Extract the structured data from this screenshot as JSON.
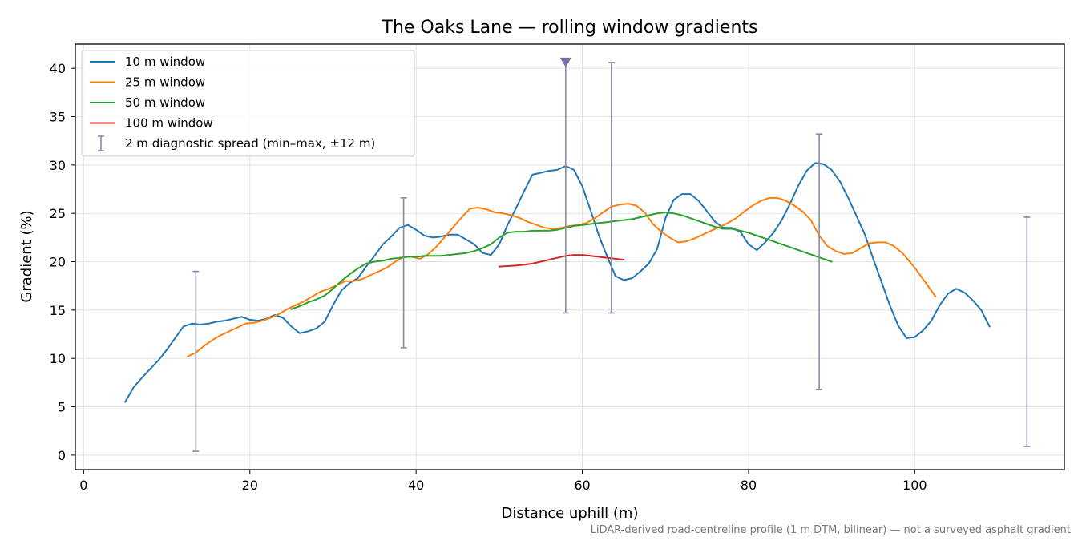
{
  "chart_data": {
    "type": "line",
    "title": "The Oaks Lane — rolling window gradients",
    "xlabel": "Distance uphill (m)",
    "ylabel": "Gradient (%)",
    "xlim": [
      -1,
      118
    ],
    "ylim": [
      -1.5,
      42.5
    ],
    "xticks": [
      0,
      20,
      40,
      60,
      80,
      100
    ],
    "yticks": [
      0,
      5,
      10,
      15,
      20,
      25,
      30,
      35,
      40
    ],
    "grid": true,
    "legend_position": "upper-left",
    "footnote": "LiDAR-derived road-centreline profile (1 m DTM, bilinear) — not a surveyed asphalt gradient",
    "series": [
      {
        "name": "10 m window",
        "color": "#1f77b4",
        "points": [
          [
            5,
            5.5
          ],
          [
            6,
            7.0
          ],
          [
            7,
            8.0
          ],
          [
            8,
            8.9
          ],
          [
            9,
            9.8
          ],
          [
            10,
            10.9
          ],
          [
            11,
            12.1
          ],
          [
            12,
            13.3
          ],
          [
            13,
            13.6
          ],
          [
            14,
            13.5
          ],
          [
            15,
            13.6
          ],
          [
            16,
            13.8
          ],
          [
            17,
            13.9
          ],
          [
            18,
            14.1
          ],
          [
            19,
            14.3
          ],
          [
            20,
            14.0
          ],
          [
            21,
            13.9
          ],
          [
            22,
            14.1
          ],
          [
            23,
            14.5
          ],
          [
            24,
            14.2
          ],
          [
            25,
            13.3
          ],
          [
            26,
            12.6
          ],
          [
            27,
            12.8
          ],
          [
            28,
            13.1
          ],
          [
            29,
            13.8
          ],
          [
            30,
            15.5
          ],
          [
            31,
            17.0
          ],
          [
            32,
            17.8
          ],
          [
            33,
            18.3
          ],
          [
            34,
            19.5
          ],
          [
            35,
            20.6
          ],
          [
            36,
            21.8
          ],
          [
            37,
            22.6
          ],
          [
            38,
            23.5
          ],
          [
            39,
            23.8
          ],
          [
            40,
            23.3
          ],
          [
            41,
            22.7
          ],
          [
            42,
            22.5
          ],
          [
            43,
            22.6
          ],
          [
            44,
            22.8
          ],
          [
            45,
            22.8
          ],
          [
            46,
            22.3
          ],
          [
            47,
            21.8
          ],
          [
            48,
            20.9
          ],
          [
            49,
            20.7
          ],
          [
            50,
            21.8
          ],
          [
            51,
            23.8
          ],
          [
            52,
            25.5
          ],
          [
            53,
            27.3
          ],
          [
            54,
            29.0
          ],
          [
            55,
            29.2
          ],
          [
            56,
            29.4
          ],
          [
            57,
            29.5
          ],
          [
            58,
            29.9
          ],
          [
            59,
            29.5
          ],
          [
            60,
            27.8
          ],
          [
            61,
            25.3
          ],
          [
            62,
            22.7
          ],
          [
            63,
            20.5
          ],
          [
            64,
            18.5
          ],
          [
            65,
            18.1
          ],
          [
            66,
            18.3
          ],
          [
            67,
            19.0
          ],
          [
            68,
            19.8
          ],
          [
            69,
            21.3
          ],
          [
            70,
            24.5
          ],
          [
            71,
            26.4
          ],
          [
            72,
            27.0
          ],
          [
            73,
            27.0
          ],
          [
            74,
            26.3
          ],
          [
            75,
            25.2
          ],
          [
            76,
            24.1
          ],
          [
            77,
            23.5
          ],
          [
            78,
            23.5
          ],
          [
            79,
            23.1
          ],
          [
            80,
            21.8
          ],
          [
            81,
            21.2
          ],
          [
            82,
            22.0
          ],
          [
            83,
            23.0
          ],
          [
            84,
            24.3
          ],
          [
            85,
            26.0
          ],
          [
            86,
            27.9
          ],
          [
            87,
            29.4
          ],
          [
            88,
            30.2
          ],
          [
            89,
            30.1
          ],
          [
            90,
            29.5
          ],
          [
            91,
            28.3
          ],
          [
            92,
            26.6
          ],
          [
            93,
            24.7
          ],
          [
            94,
            22.8
          ],
          [
            95,
            20.3
          ],
          [
            96,
            17.9
          ],
          [
            97,
            15.5
          ],
          [
            98,
            13.4
          ],
          [
            99,
            12.1
          ],
          [
            100,
            12.2
          ],
          [
            101,
            12.9
          ],
          [
            102,
            13.9
          ],
          [
            103,
            15.5
          ],
          [
            104,
            16.7
          ],
          [
            105,
            17.2
          ],
          [
            106,
            16.8
          ],
          [
            107,
            16.0
          ],
          [
            108,
            15.0
          ],
          [
            109,
            13.3
          ]
        ]
      },
      {
        "name": "25 m window",
        "color": "#ff7f0e",
        "points": [
          [
            12.5,
            10.2
          ],
          [
            13.5,
            10.6
          ],
          [
            14.5,
            11.3
          ],
          [
            15.5,
            11.9
          ],
          [
            16.5,
            12.4
          ],
          [
            17.5,
            12.8
          ],
          [
            18.5,
            13.2
          ],
          [
            19.5,
            13.6
          ],
          [
            20.5,
            13.7
          ],
          [
            21.5,
            13.9
          ],
          [
            22.5,
            14.2
          ],
          [
            23.5,
            14.6
          ],
          [
            24.5,
            15.1
          ],
          [
            25.5,
            15.5
          ],
          [
            26.5,
            15.9
          ],
          [
            27.5,
            16.4
          ],
          [
            28.5,
            16.9
          ],
          [
            29.5,
            17.2
          ],
          [
            30.5,
            17.6
          ],
          [
            31.5,
            18.0
          ],
          [
            32.5,
            18.0
          ],
          [
            33.5,
            18.2
          ],
          [
            34.5,
            18.6
          ],
          [
            35.5,
            19.0
          ],
          [
            36.5,
            19.4
          ],
          [
            37.5,
            20.0
          ],
          [
            38.5,
            20.5
          ],
          [
            39.5,
            20.5
          ],
          [
            40.5,
            20.3
          ],
          [
            41.5,
            20.8
          ],
          [
            42.5,
            21.6
          ],
          [
            43.5,
            22.6
          ],
          [
            44.5,
            23.6
          ],
          [
            45.5,
            24.6
          ],
          [
            46.5,
            25.5
          ],
          [
            47.5,
            25.6
          ],
          [
            48.5,
            25.4
          ],
          [
            49.5,
            25.1
          ],
          [
            50.5,
            25.0
          ],
          [
            51.5,
            24.8
          ],
          [
            52.5,
            24.5
          ],
          [
            53.5,
            24.1
          ],
          [
            54.5,
            23.8
          ],
          [
            55.5,
            23.5
          ],
          [
            56.5,
            23.4
          ],
          [
            57.5,
            23.5
          ],
          [
            58.5,
            23.7
          ],
          [
            59.5,
            23.8
          ],
          [
            60.5,
            24.0
          ],
          [
            61.5,
            24.5
          ],
          [
            62.5,
            25.1
          ],
          [
            63.5,
            25.7
          ],
          [
            64.5,
            25.9
          ],
          [
            65.5,
            26.0
          ],
          [
            66.5,
            25.8
          ],
          [
            67.5,
            25.1
          ],
          [
            68.5,
            23.9
          ],
          [
            69.5,
            23.1
          ],
          [
            70.5,
            22.5
          ],
          [
            71.5,
            22.0
          ],
          [
            72.5,
            22.1
          ],
          [
            73.5,
            22.4
          ],
          [
            74.5,
            22.8
          ],
          [
            75.5,
            23.2
          ],
          [
            76.5,
            23.6
          ],
          [
            77.5,
            24.0
          ],
          [
            78.5,
            24.5
          ],
          [
            79.5,
            25.2
          ],
          [
            80.5,
            25.8
          ],
          [
            81.5,
            26.3
          ],
          [
            82.5,
            26.6
          ],
          [
            83.5,
            26.6
          ],
          [
            84.5,
            26.3
          ],
          [
            85.5,
            25.8
          ],
          [
            86.5,
            25.2
          ],
          [
            87.5,
            24.3
          ],
          [
            88.5,
            22.7
          ],
          [
            89.5,
            21.6
          ],
          [
            90.5,
            21.1
          ],
          [
            91.5,
            20.8
          ],
          [
            92.5,
            20.9
          ],
          [
            93.5,
            21.4
          ],
          [
            94.5,
            21.9
          ],
          [
            95.5,
            22.0
          ],
          [
            96.5,
            22.0
          ],
          [
            97.5,
            21.6
          ],
          [
            98.5,
            20.9
          ],
          [
            99.5,
            19.9
          ],
          [
            100.5,
            18.8
          ],
          [
            101.5,
            17.6
          ],
          [
            102.5,
            16.4
          ]
        ]
      },
      {
        "name": "50 m window",
        "color": "#2ca02c",
        "points": [
          [
            25,
            15.1
          ],
          [
            26,
            15.4
          ],
          [
            27,
            15.8
          ],
          [
            28,
            16.1
          ],
          [
            29,
            16.5
          ],
          [
            30,
            17.2
          ],
          [
            31,
            18.0
          ],
          [
            32,
            18.7
          ],
          [
            33,
            19.3
          ],
          [
            34,
            19.8
          ],
          [
            35,
            20.0
          ],
          [
            36,
            20.1
          ],
          [
            37,
            20.3
          ],
          [
            38,
            20.4
          ],
          [
            39,
            20.5
          ],
          [
            40,
            20.5
          ],
          [
            41,
            20.6
          ],
          [
            42,
            20.6
          ],
          [
            43,
            20.6
          ],
          [
            44,
            20.7
          ],
          [
            45,
            20.8
          ],
          [
            46,
            20.9
          ],
          [
            47,
            21.1
          ],
          [
            48,
            21.4
          ],
          [
            49,
            21.8
          ],
          [
            50,
            22.5
          ],
          [
            51,
            23.0
          ],
          [
            52,
            23.1
          ],
          [
            53,
            23.1
          ],
          [
            54,
            23.2
          ],
          [
            55,
            23.2
          ],
          [
            56,
            23.2
          ],
          [
            57,
            23.3
          ],
          [
            58,
            23.5
          ],
          [
            59,
            23.7
          ],
          [
            60,
            23.8
          ],
          [
            61,
            23.9
          ],
          [
            62,
            24.0
          ],
          [
            63,
            24.1
          ],
          [
            64,
            24.2
          ],
          [
            65,
            24.3
          ],
          [
            66,
            24.4
          ],
          [
            67,
            24.6
          ],
          [
            68,
            24.8
          ],
          [
            69,
            25.0
          ],
          [
            70,
            25.1
          ],
          [
            71,
            25.0
          ],
          [
            72,
            24.8
          ],
          [
            73,
            24.5
          ],
          [
            74,
            24.2
          ],
          [
            75,
            23.9
          ],
          [
            76,
            23.6
          ],
          [
            77,
            23.4
          ],
          [
            78,
            23.4
          ],
          [
            79,
            23.2
          ],
          [
            80,
            23.0
          ],
          [
            81,
            22.7
          ],
          [
            82,
            22.4
          ],
          [
            83,
            22.1
          ],
          [
            84,
            21.8
          ],
          [
            85,
            21.5
          ],
          [
            86,
            21.2
          ],
          [
            87,
            20.9
          ],
          [
            88,
            20.6
          ],
          [
            89,
            20.3
          ],
          [
            90,
            20.0
          ]
        ]
      },
      {
        "name": "100 m window",
        "color": "#d62728",
        "points": [
          [
            50,
            19.5
          ],
          [
            51,
            19.55
          ],
          [
            52,
            19.6
          ],
          [
            53,
            19.7
          ],
          [
            54,
            19.8
          ],
          [
            55,
            20.0
          ],
          [
            56,
            20.2
          ],
          [
            57,
            20.4
          ],
          [
            58,
            20.6
          ],
          [
            59,
            20.7
          ],
          [
            60,
            20.7
          ],
          [
            61,
            20.6
          ],
          [
            62,
            20.5
          ],
          [
            63,
            20.4
          ],
          [
            64,
            20.3
          ],
          [
            65,
            20.2
          ]
        ]
      }
    ],
    "error_bars": {
      "name": "2 m diagnostic spread (min–max, ±12 m)",
      "color": "#8a8aa8",
      "ranges": [
        [
          13.5,
          0.4,
          19.0
        ],
        [
          38.5,
          11.1,
          26.6
        ],
        [
          58.0,
          14.7,
          40.6
        ],
        [
          63.5,
          14.7,
          40.6
        ],
        [
          88.5,
          6.8,
          33.2
        ],
        [
          113.5,
          0.9,
          24.6
        ]
      ]
    },
    "marker": {
      "x": 58.0,
      "y": 40.6,
      "color": "#7b6ba8",
      "symbol": "triangle-down"
    }
  }
}
